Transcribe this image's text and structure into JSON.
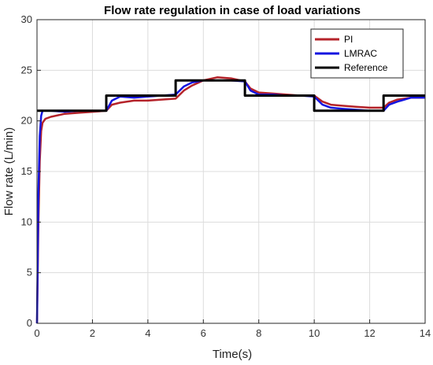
{
  "chart_data": {
    "type": "line",
    "title": "Flow rate regulation in case of load variations",
    "xlabel": "Time(s)",
    "ylabel": "Flow rate (L/min)",
    "xlim": [
      0,
      14
    ],
    "ylim": [
      0,
      30
    ],
    "xticks": [
      0,
      2,
      4,
      6,
      8,
      10,
      12,
      14
    ],
    "yticks": [
      0,
      5,
      10,
      15,
      20,
      25,
      30
    ],
    "grid": true,
    "legend_position": "top-right",
    "series": [
      {
        "name": "PI",
        "color": "#b5232a",
        "x": [
          0,
          0.05,
          0.1,
          0.15,
          0.2,
          0.3,
          0.5,
          1,
          1.5,
          2,
          2.5,
          2.7,
          3,
          3.5,
          4,
          4.5,
          5,
          5.3,
          5.6,
          6,
          6.5,
          7,
          7.5,
          7.7,
          8,
          8.5,
          9,
          9.5,
          10,
          10.3,
          10.6,
          11,
          11.5,
          12,
          12.5,
          12.7,
          13,
          13.5,
          14
        ],
        "values": [
          0,
          10,
          16,
          19,
          19.8,
          20.2,
          20.4,
          20.7,
          20.8,
          20.9,
          21,
          21.6,
          21.8,
          22,
          22,
          22.1,
          22.2,
          23,
          23.5,
          24,
          24.3,
          24.2,
          23.9,
          23.2,
          22.8,
          22.7,
          22.6,
          22.5,
          22.5,
          21.9,
          21.6,
          21.5,
          21.4,
          21.3,
          21.3,
          21.8,
          22.1,
          22.3,
          22.3
        ]
      },
      {
        "name": "LMRAC",
        "color": "#1515e0",
        "x": [
          0,
          0.05,
          0.1,
          0.15,
          0.2,
          0.3,
          0.5,
          1,
          1.5,
          2,
          2.5,
          2.7,
          3,
          3.5,
          4,
          4.5,
          5,
          5.3,
          5.6,
          6,
          6.5,
          7,
          7.5,
          7.7,
          8,
          8.5,
          9,
          9.5,
          10,
          10.3,
          10.6,
          11,
          11.5,
          12,
          12.5,
          12.7,
          13,
          13.5,
          14
        ],
        "values": [
          0,
          13,
          18.5,
          20.5,
          21,
          21,
          21,
          20.9,
          21,
          21,
          21,
          22,
          22.4,
          22.3,
          22.4,
          22.5,
          22.6,
          23.4,
          23.8,
          24,
          24,
          24,
          23.9,
          23,
          22.6,
          22.6,
          22.5,
          22.5,
          22.4,
          21.6,
          21.3,
          21.2,
          21.1,
          21,
          21,
          21.6,
          21.9,
          22.3,
          22.3
        ]
      },
      {
        "name": "Reference",
        "color": "#000000",
        "x": [
          0,
          2.5,
          2.5,
          5,
          5,
          7.5,
          7.5,
          10,
          10,
          12.5,
          12.5,
          14
        ],
        "values": [
          21,
          21,
          22.5,
          22.5,
          24,
          24,
          22.5,
          22.5,
          21,
          21,
          22.5,
          22.5
        ]
      }
    ]
  }
}
